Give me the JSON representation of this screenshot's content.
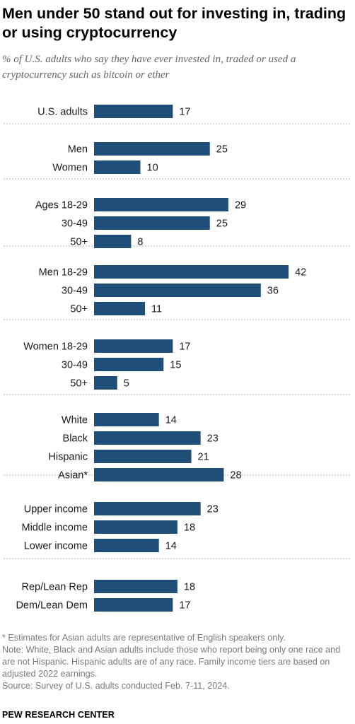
{
  "header": {
    "title": "Men under 50 stand out for investing in, trading or using cryptocurrency",
    "subtitle": "% of U.S. adults who say they have ever invested in, traded or used a cryptocurrency such as bitcoin or ether"
  },
  "chart_data": {
    "type": "bar",
    "orientation": "horizontal",
    "bar_color": "#1f4e79",
    "divider_color": "#b3b3b3",
    "xlim": [
      0,
      42
    ],
    "groups": [
      {
        "categories": [
          "U.S. adults"
        ],
        "values": [
          17
        ]
      },
      {
        "categories": [
          "Men",
          "Women"
        ],
        "values": [
          25,
          10
        ]
      },
      {
        "categories": [
          "Ages 18-29",
          "30-49",
          "50+"
        ],
        "values": [
          29,
          25,
          8
        ]
      },
      {
        "categories": [
          "Men 18-29",
          "30-49",
          "50+"
        ],
        "values": [
          42,
          36,
          11
        ]
      },
      {
        "categories": [
          "Women 18-29",
          "30-49",
          "50+"
        ],
        "values": [
          17,
          15,
          5
        ]
      },
      {
        "categories": [
          "White",
          "Black",
          "Hispanic",
          "Asian*"
        ],
        "values": [
          14,
          23,
          21,
          28
        ]
      },
      {
        "categories": [
          "Upper income",
          "Middle income",
          "Lower income"
        ],
        "values": [
          23,
          18,
          14
        ]
      },
      {
        "categories": [
          "Rep/Lean Rep",
          "Dem/Lean Dem"
        ],
        "values": [
          18,
          17
        ]
      }
    ]
  },
  "footer": {
    "notes": [
      "* Estimates for Asian adults are representative of English speakers only.",
      "Note: White, Black and Asian adults include those who report being only one race and are not Hispanic. Hispanic adults are of any race. Family income tiers are based on adjusted 2022 earnings.",
      "Source: Survey of U.S. adults conducted Feb. 7-11, 2024."
    ],
    "brand": "PEW RESEARCH CENTER"
  }
}
